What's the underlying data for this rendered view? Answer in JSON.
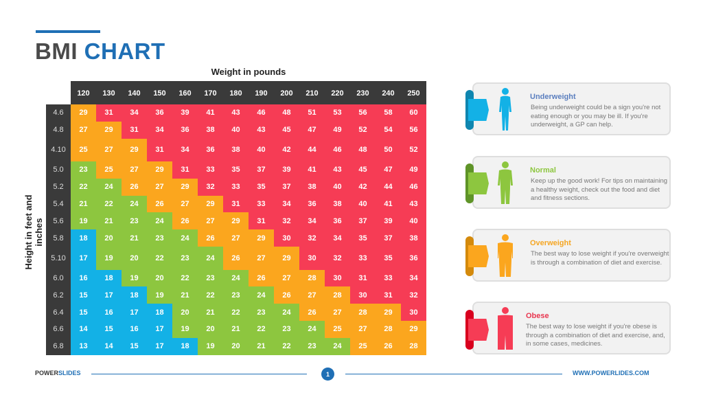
{
  "title": {
    "part1": "BMI",
    "part2": "CHART"
  },
  "chart_data": {
    "type": "heatmap",
    "xlabel": "Weight in pounds",
    "ylabel": "Height in feet and inches",
    "x": [
      "120",
      "130",
      "140",
      "150",
      "160",
      "170",
      "180",
      "190",
      "200",
      "210",
      "220",
      "230",
      "240",
      "250"
    ],
    "y": [
      "4.6",
      "4.8",
      "4.10",
      "5.0",
      "5.2",
      "5.4",
      "5.6",
      "5.8",
      "5.10",
      "6.0",
      "6.2",
      "6.4",
      "6.6",
      "6.8"
    ],
    "values": [
      [
        29,
        31,
        34,
        36,
        39,
        41,
        43,
        46,
        48,
        51,
        53,
        56,
        58,
        60
      ],
      [
        27,
        29,
        31,
        34,
        36,
        38,
        40,
        43,
        45,
        47,
        49,
        52,
        54,
        56
      ],
      [
        25,
        27,
        29,
        31,
        34,
        36,
        38,
        40,
        42,
        44,
        46,
        48,
        50,
        52
      ],
      [
        23,
        25,
        27,
        29,
        31,
        33,
        35,
        37,
        39,
        41,
        43,
        45,
        47,
        49
      ],
      [
        22,
        24,
        26,
        27,
        29,
        32,
        33,
        35,
        37,
        38,
        40,
        42,
        44,
        46
      ],
      [
        21,
        22,
        24,
        26,
        27,
        29,
        31,
        33,
        34,
        36,
        38,
        40,
        41,
        43
      ],
      [
        19,
        21,
        23,
        24,
        26,
        27,
        29,
        31,
        32,
        34,
        36,
        37,
        39,
        40
      ],
      [
        18,
        20,
        21,
        23,
        24,
        26,
        27,
        29,
        30,
        32,
        34,
        35,
        37,
        38
      ],
      [
        17,
        19,
        20,
        22,
        23,
        24,
        26,
        27,
        29,
        30,
        32,
        33,
        35,
        36
      ],
      [
        16,
        18,
        19,
        20,
        22,
        23,
        24,
        26,
        27,
        28,
        30,
        31,
        33,
        34
      ],
      [
        15,
        17,
        18,
        19,
        21,
        22,
        23,
        24,
        26,
        27,
        28,
        30,
        31,
        32
      ],
      [
        15,
        16,
        17,
        18,
        20,
        21,
        22,
        23,
        24,
        26,
        27,
        28,
        29,
        30
      ],
      [
        14,
        15,
        16,
        17,
        19,
        20,
        21,
        22,
        23,
        24,
        25,
        27,
        28,
        29
      ],
      [
        13,
        14,
        15,
        17,
        18,
        19,
        20,
        21,
        22,
        23,
        24,
        25,
        26,
        28
      ]
    ],
    "color_scale": [
      {
        "category": "Underweight",
        "max": 18,
        "color": "#13b1e6"
      },
      {
        "category": "Normal",
        "max": 24,
        "color": "#8dc63f"
      },
      {
        "category": "Overweight",
        "max": 29,
        "color": "#fba61e"
      },
      {
        "category": "Obese",
        "max": 99,
        "color": "#f63c55"
      }
    ]
  },
  "cards": [
    {
      "title": "Underweight",
      "text": "Being underweight could be a sign you're not eating enough or you may be ill. If you're underweight, a GP can help.",
      "color": "#13b1e6",
      "dark": "#0f86b0",
      "title_color": "#5b7fbf",
      "icon": "female-figure-slim-icon"
    },
    {
      "title": "Normal",
      "text": "Keep up the good work! For tips on maintaining a healthy weight, check out the food and diet and fitness sections.",
      "color": "#8dc63f",
      "dark": "#5f9428",
      "title_color": "#8dc63f",
      "icon": "female-figure-normal-icon"
    },
    {
      "title": "Overweight",
      "text": "The best way to lose weight if you're overweight is through a combination of diet and exercise.",
      "color": "#fba61e",
      "dark": "#d48a0c",
      "title_color": "#f5a623",
      "icon": "female-figure-overweight-icon"
    },
    {
      "title": "Obese",
      "text": "The best way to lose weight if you're obese is through a combination of diet and exercise, and, in some cases, medicines.",
      "color": "#f63c55",
      "dark": "#d9001e",
      "title_color": "#e8364f",
      "icon": "figure-obese-icon"
    }
  ],
  "footer": {
    "brand1": "POWER",
    "brand2": "SLIDES",
    "page": "1",
    "url": "WWW.POWERLIDES.COM"
  }
}
